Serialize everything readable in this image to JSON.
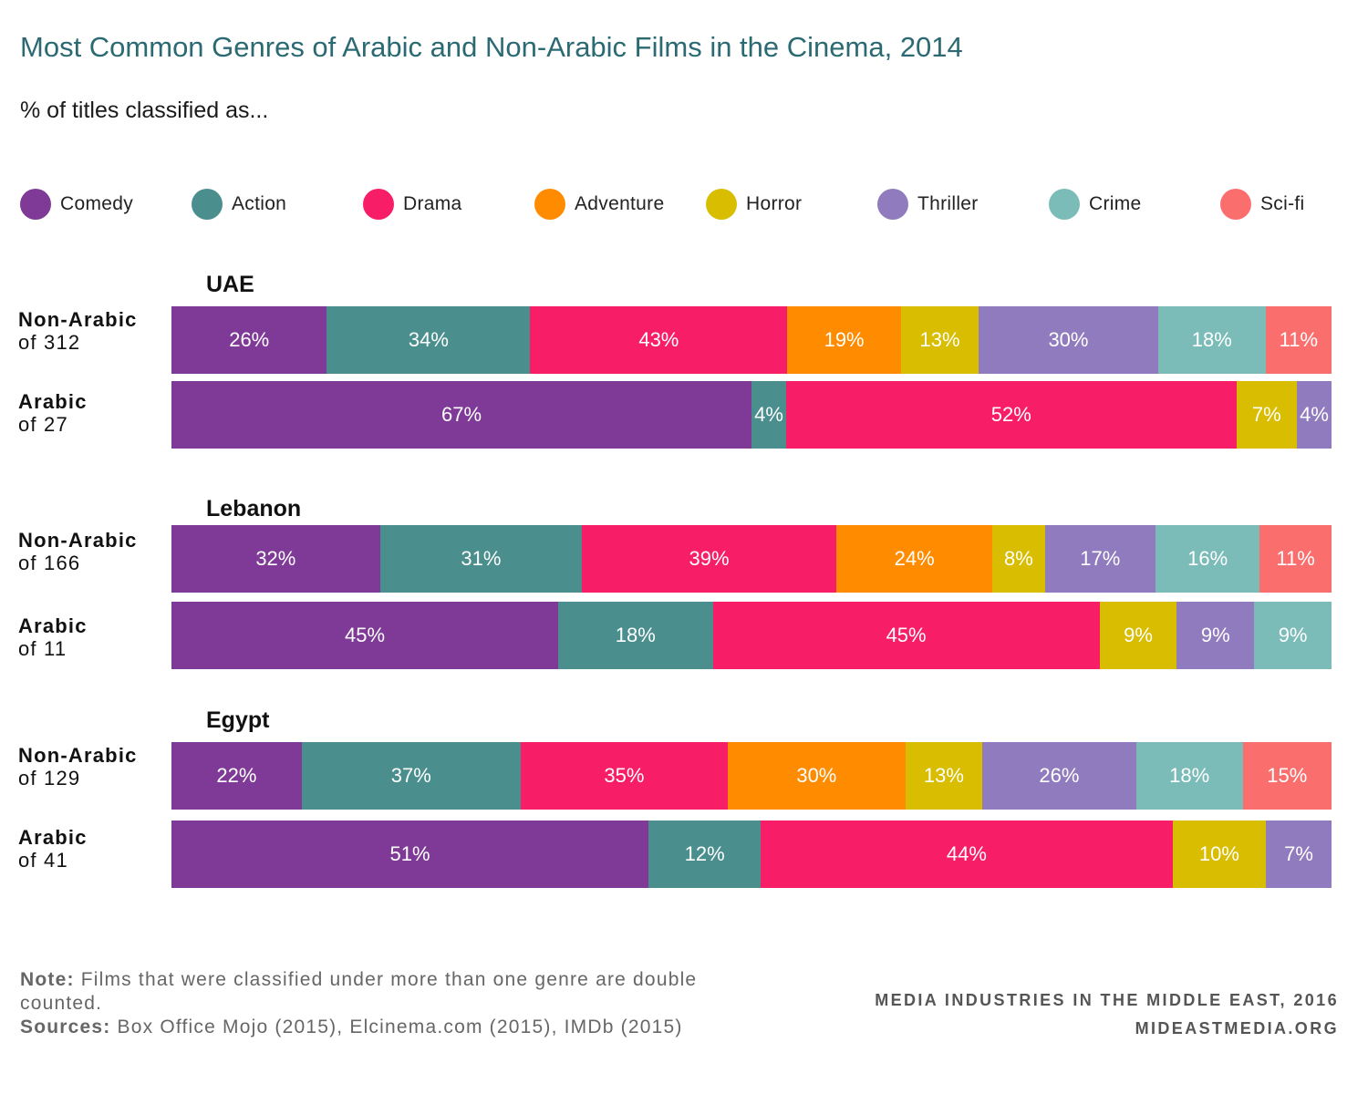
{
  "title": "Most Common Genres of Arabic and Non-Arabic Films in the Cinema, 2014",
  "subtitle": "% of titles classified as...",
  "legend": [
    {
      "name": "Comedy",
      "color": "#7e3a96"
    },
    {
      "name": "Action",
      "color": "#4a8e8e"
    },
    {
      "name": "Drama",
      "color": "#f81d67"
    },
    {
      "name": "Adventure",
      "color": "#ff8c00"
    },
    {
      "name": "Horror",
      "color": "#d8bd00"
    },
    {
      "name": "Thriller",
      "color": "#8f7bbd"
    },
    {
      "name": "Crime",
      "color": "#7bbcb8"
    },
    {
      "name": "Sci-fi",
      "color": "#fb6e6e"
    }
  ],
  "chart_data": {
    "type": "bar",
    "orientation": "horizontal",
    "stacked": true,
    "groups": [
      {
        "name": "UAE",
        "rows": [
          {
            "label": "Non-Arabic",
            "sublabel": "of 312",
            "values": [
              {
                "genre": "Comedy",
                "value": 26,
                "label": "26%"
              },
              {
                "genre": "Action",
                "value": 34,
                "label": "34%"
              },
              {
                "genre": "Drama",
                "value": 43,
                "label": "43%"
              },
              {
                "genre": "Adventure",
                "value": 19,
                "label": "19%"
              },
              {
                "genre": "Horror",
                "value": 13,
                "label": "13%"
              },
              {
                "genre": "Thriller",
                "value": 30,
                "label": "30%"
              },
              {
                "genre": "Crime",
                "value": 18,
                "label": "18%"
              },
              {
                "genre": "Sci-fi",
                "value": 11,
                "label": "11%"
              }
            ]
          },
          {
            "label": "Arabic",
            "sublabel": "of 27",
            "values": [
              {
                "genre": "Comedy",
                "value": 67,
                "label": "67%"
              },
              {
                "genre": "Action",
                "value": 4,
                "label": "4%"
              },
              {
                "genre": "Drama",
                "value": 52,
                "label": "52%"
              },
              {
                "genre": "Horror",
                "value": 7,
                "label": "7%"
              },
              {
                "genre": "Thriller",
                "value": 4,
                "label": "4%"
              }
            ]
          }
        ]
      },
      {
        "name": "Lebanon",
        "rows": [
          {
            "label": "Non-Arabic",
            "sublabel": "of 166",
            "values": [
              {
                "genre": "Comedy",
                "value": 32,
                "label": "32%"
              },
              {
                "genre": "Action",
                "value": 31,
                "label": "31%"
              },
              {
                "genre": "Drama",
                "value": 39,
                "label": "39%"
              },
              {
                "genre": "Adventure",
                "value": 24,
                "label": "24%"
              },
              {
                "genre": "Horror",
                "value": 8,
                "label": "8%"
              },
              {
                "genre": "Thriller",
                "value": 17,
                "label": "17%"
              },
              {
                "genre": "Crime",
                "value": 16,
                "label": "16%"
              },
              {
                "genre": "Sci-fi",
                "value": 11,
                "label": "11%"
              }
            ]
          },
          {
            "label": "Arabic",
            "sublabel": "of 11",
            "values": [
              {
                "genre": "Comedy",
                "value": 45,
                "label": "45%"
              },
              {
                "genre": "Action",
                "value": 18,
                "label": "18%"
              },
              {
                "genre": "Drama",
                "value": 45,
                "label": "45%"
              },
              {
                "genre": "Horror",
                "value": 9,
                "label": "9%"
              },
              {
                "genre": "Thriller",
                "value": 9,
                "label": "9%"
              },
              {
                "genre": "Crime",
                "value": 9,
                "label": "9%"
              }
            ]
          }
        ]
      },
      {
        "name": "Egypt",
        "rows": [
          {
            "label": "Non-Arabic",
            "sublabel": "of 129",
            "values": [
              {
                "genre": "Comedy",
                "value": 22,
                "label": "22%"
              },
              {
                "genre": "Action",
                "value": 37,
                "label": "37%"
              },
              {
                "genre": "Drama",
                "value": 35,
                "label": "35%"
              },
              {
                "genre": "Adventure",
                "value": 30,
                "label": "30%"
              },
              {
                "genre": "Horror",
                "value": 13,
                "label": "13%"
              },
              {
                "genre": "Thriller",
                "value": 26,
                "label": "26%"
              },
              {
                "genre": "Crime",
                "value": 18,
                "label": "18%"
              },
              {
                "genre": "Sci-fi",
                "value": 15,
                "label": "15%"
              }
            ]
          },
          {
            "label": "Arabic",
            "sublabel": "of 41",
            "values": [
              {
                "genre": "Comedy",
                "value": 51,
                "label": "51%"
              },
              {
                "genre": "Action",
                "value": 12,
                "label": "12%"
              },
              {
                "genre": "Drama",
                "value": 44,
                "label": "44%"
              },
              {
                "genre": "Horror",
                "value": 10,
                "label": "10%"
              },
              {
                "genre": "Thriller",
                "value": 7,
                "label": "7%"
              }
            ]
          }
        ]
      }
    ]
  },
  "note": {
    "note_label": "Note:",
    "note_text": "Films that were classified under more than one genre are double counted.",
    "sources_label": "Sources:",
    "sources_text": "Box Office Mojo (2015), Elcinema.com (2015), IMDb (2015)"
  },
  "credit": {
    "line1": "MEDIA INDUSTRIES IN THE MIDDLE EAST, 2016",
    "line2": "MIDEASTMEDIA.ORG"
  }
}
